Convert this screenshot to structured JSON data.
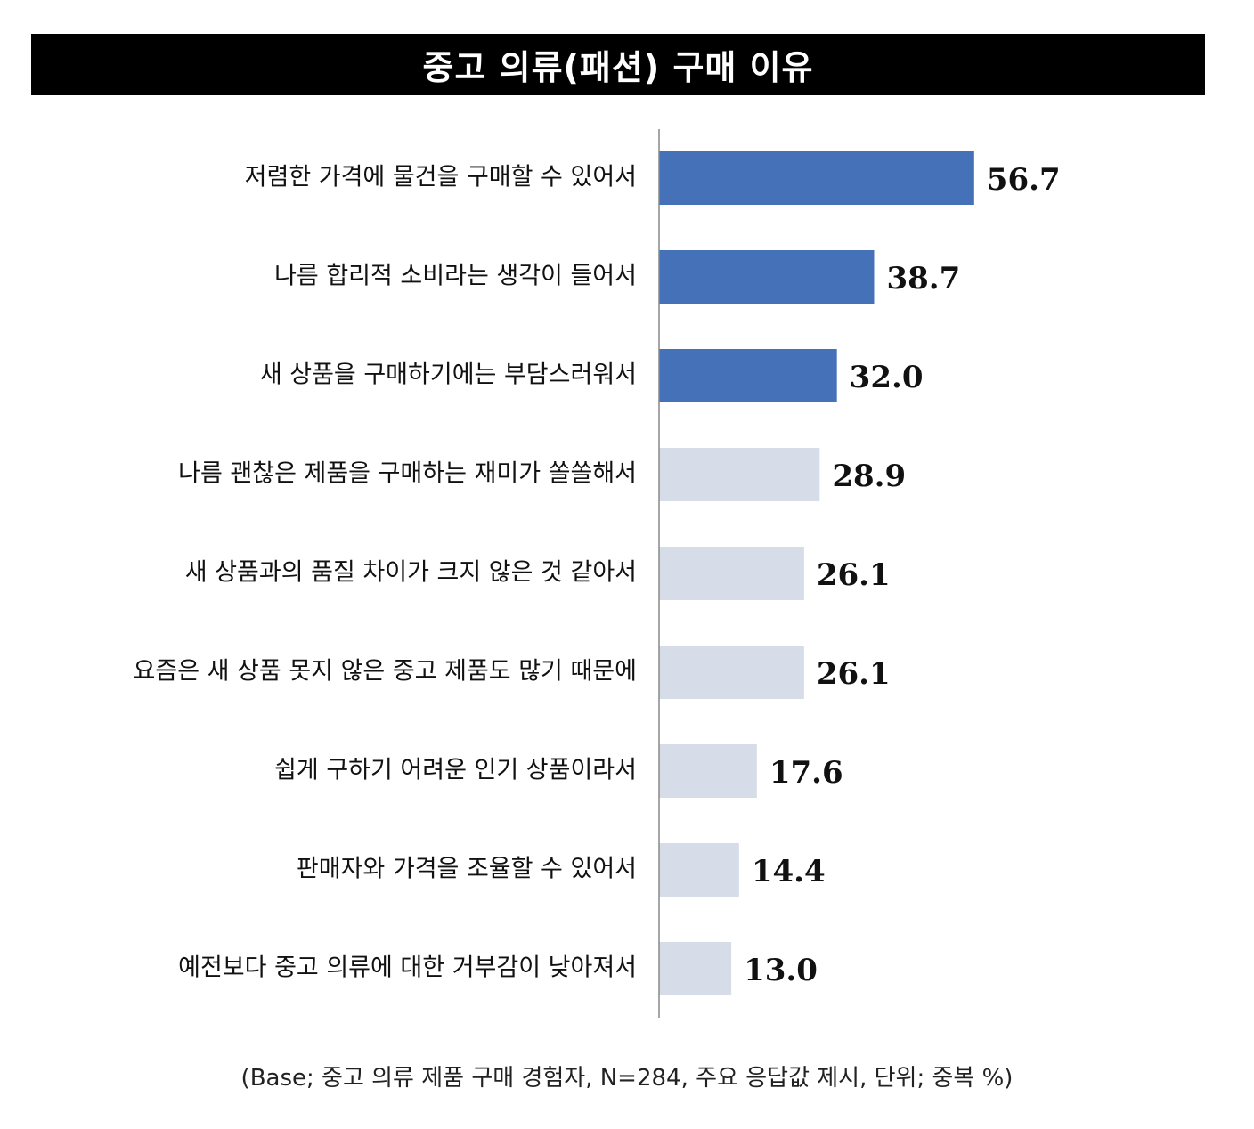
{
  "chart_data": {
    "type": "bar",
    "orientation": "horizontal",
    "title": "중고 의류(패션) 구매 이유",
    "categories": [
      "저렴한 가격에 물건을 구매할 수 있어서",
      "나름 합리적 소비라는 생각이 들어서",
      "새 상품을 구매하기에는 부담스러워서",
      "나름 괜찮은 제품을 구매하는 재미가 쏠쏠해서",
      "새 상품과의 품질 차이가 크지 않은 것 같아서",
      "요즘은 새 상품 못지 않은 중고 제품도 많기 때문에",
      "쉽게 구하기 어려운 인기 상품이라서",
      "판매자와 가격을 조율할 수 있어서",
      "예전보다 중고 의류에 대한 거부감이 낮아져서"
    ],
    "values": [
      56.7,
      38.7,
      32.0,
      28.9,
      26.1,
      26.1,
      17.6,
      14.4,
      13.0
    ],
    "value_labels": [
      "56.7",
      "38.7",
      "32.0",
      "28.9",
      "26.1",
      "26.1",
      "17.6",
      "14.4",
      "13.0"
    ],
    "highlight_count": 3,
    "colors": {
      "highlight": "#4571b8",
      "default": "#d7dde8",
      "axis": "#888888"
    },
    "xlim": [
      0,
      100
    ],
    "grid": false,
    "legend": "none",
    "footnote": "(Base; 중고 의류 제품 구매 경험자, N=284, 주요 응답값 제시, 단위; 중복 %)"
  }
}
